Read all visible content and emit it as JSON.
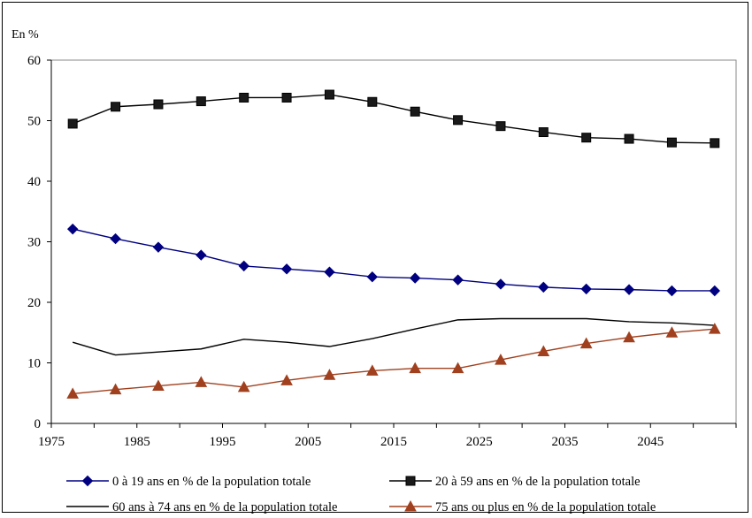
{
  "chart_data": {
    "type": "line",
    "unit_label": "En %",
    "ylim": [
      0,
      60
    ],
    "yticks": [
      0,
      10,
      20,
      30,
      40,
      50,
      60
    ],
    "x": [
      1975,
      1980,
      1985,
      1990,
      1995,
      2000,
      2005,
      2010,
      2015,
      2020,
      2025,
      2030,
      2035,
      2040,
      2045,
      2050
    ],
    "xtick_labels": [
      "1975",
      "1985",
      "1995",
      "2005",
      "2015",
      "2025",
      "2035",
      "2045"
    ],
    "grid": false,
    "legend_position": "bottom",
    "series": [
      {
        "name": "0 à 19 ans en % de la population totale",
        "color": "#000080",
        "marker": "diamond",
        "values": [
          32.1,
          30.5,
          29.1,
          27.8,
          26.0,
          25.5,
          25.0,
          24.2,
          24.0,
          23.7,
          23.0,
          22.5,
          22.2,
          22.1,
          21.9,
          21.9
        ]
      },
      {
        "name": "20 à 59 ans en % de la population totale",
        "color": "#1a1a1a",
        "marker": "square",
        "values": [
          49.5,
          52.3,
          52.7,
          53.2,
          53.8,
          53.8,
          54.3,
          53.1,
          51.5,
          50.1,
          49.1,
          48.1,
          47.2,
          47.0,
          46.4,
          46.3
        ]
      },
      {
        "name": "60 ans à 74 ans en % de la population totale",
        "color": "#000000",
        "marker": "none",
        "values": [
          13.4,
          11.3,
          11.8,
          12.3,
          13.9,
          13.4,
          12.7,
          14.0,
          15.6,
          17.1,
          17.3,
          17.3,
          17.3,
          16.8,
          16.6,
          16.2
        ]
      },
      {
        "name": "75 ans ou plus en % de la population totale",
        "color": "#a0401e",
        "marker": "triangle",
        "values": [
          4.9,
          5.6,
          6.2,
          6.8,
          6.0,
          7.1,
          8.0,
          8.7,
          9.1,
          9.1,
          10.5,
          11.9,
          13.2,
          14.2,
          15.0,
          15.6
        ]
      }
    ]
  }
}
